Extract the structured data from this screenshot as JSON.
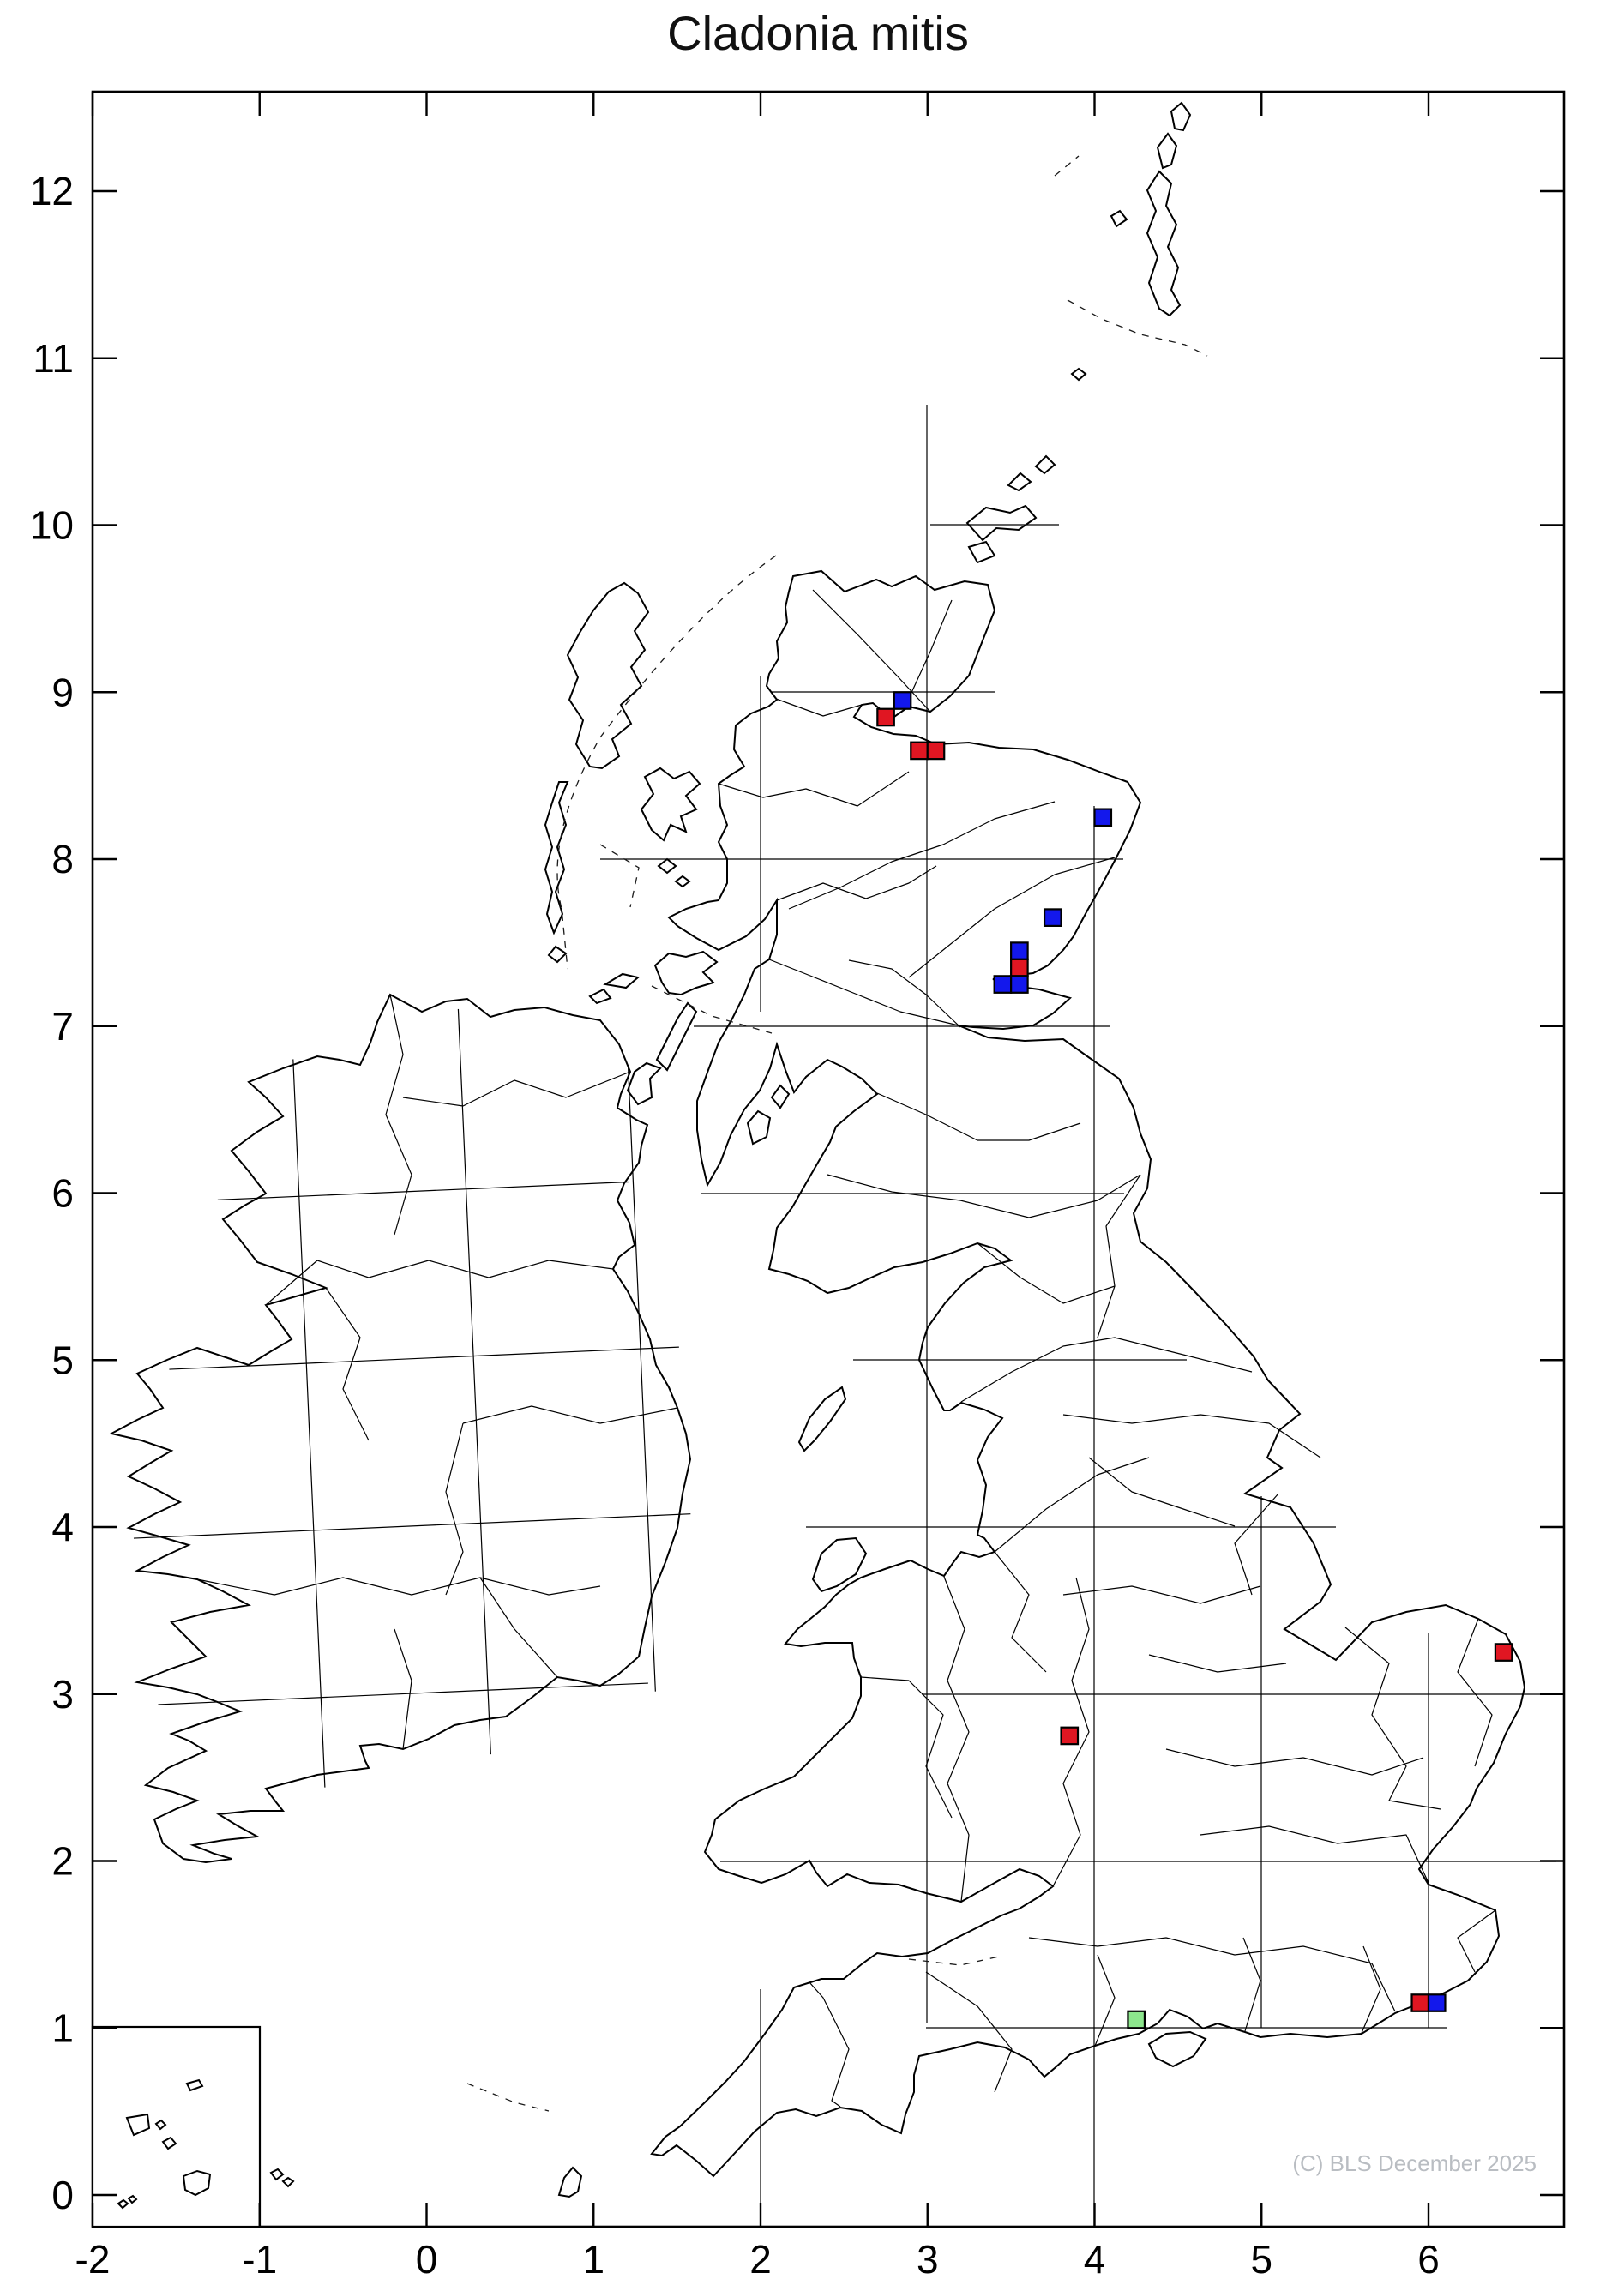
{
  "title": "Cladonia mitis",
  "watermark": "(C) BLS December 2025",
  "axes": {
    "x_ticks": [
      "-2",
      "-1",
      "0",
      "1",
      "2",
      "3",
      "4",
      "5",
      "6"
    ],
    "y_ticks": [
      "0",
      "1",
      "2",
      "3",
      "4",
      "5",
      "6",
      "7",
      "8",
      "9",
      "10",
      "11",
      "12"
    ]
  },
  "map": {
    "marker_colors": {
      "red": "#e01622",
      "blue": "#1318ec",
      "green": "#8ce68c"
    },
    "markers": [
      {
        "x": 2.85,
        "y": 8.95,
        "color": "blue"
      },
      {
        "x": 2.75,
        "y": 8.85,
        "color": "red"
      },
      {
        "x": 2.95,
        "y": 8.65,
        "color": "red"
      },
      {
        "x": 3.05,
        "y": 8.65,
        "color": "red"
      },
      {
        "x": 4.05,
        "y": 8.25,
        "color": "blue"
      },
      {
        "x": 3.75,
        "y": 7.65,
        "color": "blue"
      },
      {
        "x": 3.55,
        "y": 7.45,
        "color": "blue"
      },
      {
        "x": 3.55,
        "y": 7.35,
        "color": "red"
      },
      {
        "x": 3.45,
        "y": 7.25,
        "color": "blue"
      },
      {
        "x": 3.55,
        "y": 7.25,
        "color": "blue"
      },
      {
        "x": 6.45,
        "y": 3.25,
        "color": "red"
      },
      {
        "x": 3.85,
        "y": 2.75,
        "color": "red"
      },
      {
        "x": 4.25,
        "y": 1.05,
        "color": "green"
      },
      {
        "x": 5.95,
        "y": 1.15,
        "color": "red"
      },
      {
        "x": 6.05,
        "y": 1.15,
        "color": "blue"
      }
    ]
  }
}
